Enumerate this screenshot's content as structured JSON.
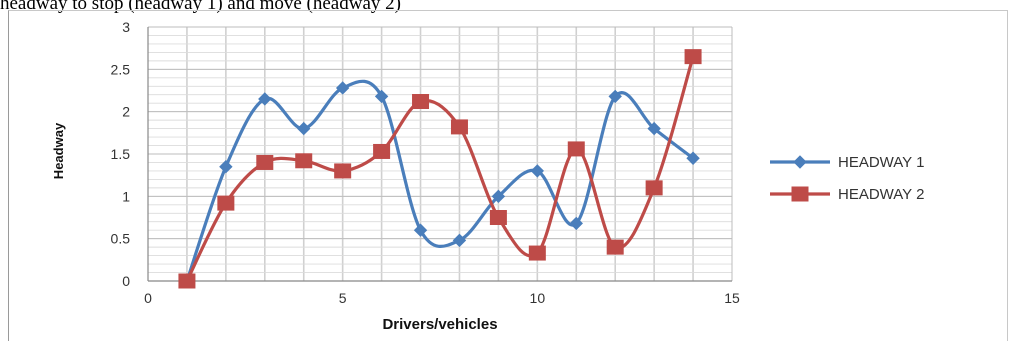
{
  "caption": "headway to stop (headway 1) and move (headway 2)",
  "chart_data": {
    "type": "line",
    "title": "",
    "xlabel": "Drivers/vehicles",
    "ylabel": "Headway",
    "xlim": [
      0,
      15
    ],
    "ylim": [
      0,
      3
    ],
    "x_ticks": [
      "0",
      "5",
      "10",
      "15"
    ],
    "y_ticks": [
      "0",
      "0.5",
      "1",
      "1.5",
      "2",
      "2.5",
      "3"
    ],
    "grid": true,
    "smooth": true,
    "legend_position": "right",
    "series": [
      {
        "name": "HEADWAY 1",
        "color": "#4a7ebb",
        "marker": "diamond",
        "x": [
          1,
          2,
          3,
          4,
          5,
          6,
          7,
          8,
          9,
          10,
          11,
          12,
          13,
          14
        ],
        "values": [
          0,
          1.35,
          2.15,
          1.8,
          2.28,
          2.18,
          0.6,
          0.48,
          1.0,
          1.3,
          0.68,
          2.18,
          1.8,
          1.45
        ]
      },
      {
        "name": "HEADWAY 2",
        "color": "#be4b48",
        "marker": "square",
        "x": [
          1,
          2,
          3,
          4,
          5,
          6,
          7,
          8,
          9,
          10,
          11,
          12,
          13,
          14
        ],
        "values": [
          0,
          0.92,
          1.4,
          1.42,
          1.3,
          1.53,
          2.12,
          1.82,
          0.75,
          0.33,
          1.56,
          0.4,
          1.1,
          2.65
        ]
      }
    ]
  }
}
